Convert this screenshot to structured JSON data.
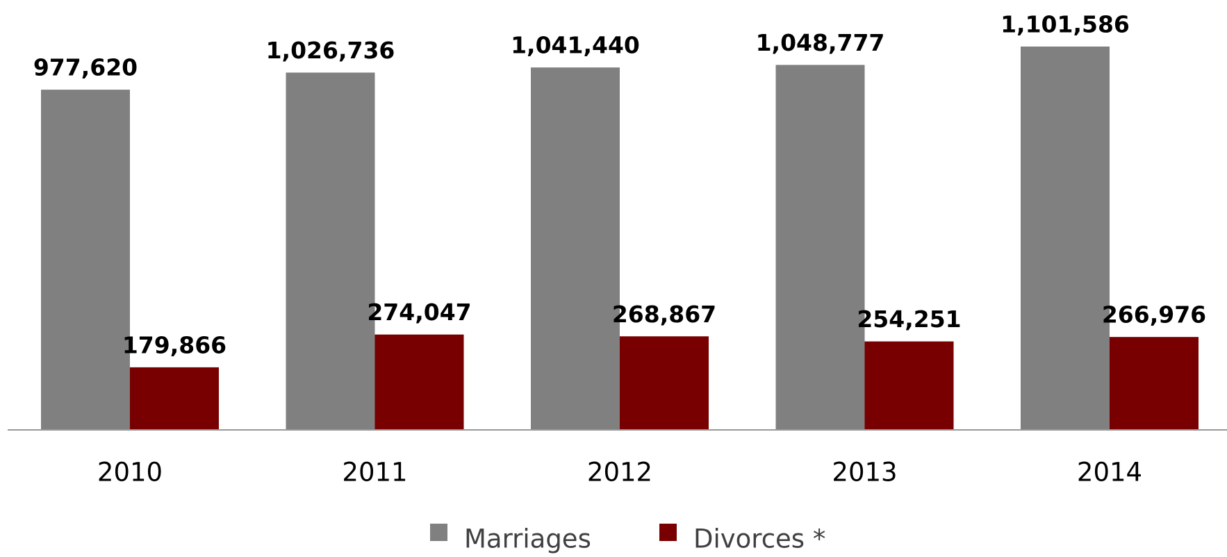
{
  "chart_data": {
    "type": "bar",
    "categories": [
      "2010",
      "2011",
      "2012",
      "2013",
      "2014"
    ],
    "series": [
      {
        "name": "Marriages",
        "color": "#808080",
        "values": [
          977620,
          1026736,
          1041440,
          1048777,
          1101586
        ],
        "value_labels": [
          "977,620",
          "1,026,736",
          "1,041,440",
          "1,048,777",
          "1,101,586"
        ]
      },
      {
        "name": "Divorces *",
        "color": "#790000",
        "values": [
          179866,
          274047,
          268867,
          254251,
          266976
        ],
        "value_labels": [
          "179,866",
          "274,047",
          "268,867",
          "254,251",
          "266,976"
        ]
      }
    ]
  }
}
